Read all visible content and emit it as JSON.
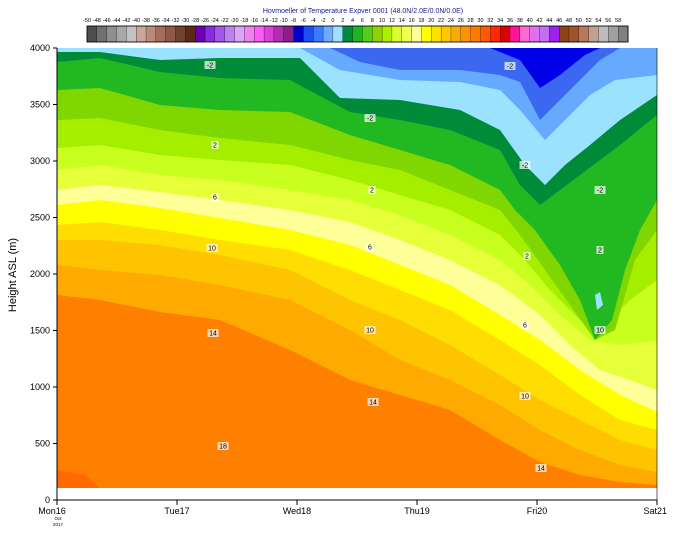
{
  "chart_data": {
    "type": "heatmap",
    "title": "Hovmoeller of Temperature Expver 0001 (48.0N/2.0E/0.0N/0.0E)",
    "ylabel": "Height ASL (m)",
    "xlabel": "",
    "ylim": [
      0,
      4000
    ],
    "yticks": [
      "0",
      "500",
      "1000",
      "1500",
      "2000",
      "2500",
      "3000",
      "3500",
      "4000"
    ],
    "xticks": [
      "Mon16",
      "Tue17",
      "Wed18",
      "Thu19",
      "Fri20",
      "Sat21"
    ],
    "x_sub": [
      "Oct",
      "2017"
    ],
    "colorbar": {
      "levels": [
        "-50",
        "-48",
        "-46",
        "-44",
        "-42",
        "-40",
        "-38",
        "-36",
        "-34",
        "-32",
        "-30",
        "-28",
        "-26",
        "-24",
        "-22",
        "-20",
        "-18",
        "-16",
        "-14",
        "-12",
        "-10",
        "-8",
        "-6",
        "-4",
        "-2",
        "0",
        "2",
        "4",
        "6",
        "8",
        "10",
        "12",
        "14",
        "16",
        "18",
        "20",
        "22",
        "24",
        "26",
        "28",
        "30",
        "32",
        "34",
        "36",
        "38",
        "40",
        "42",
        "44",
        "46",
        "48",
        "50",
        "52",
        "54",
        "56",
        "58"
      ],
      "colors": [
        "#4d4d4d",
        "#707070",
        "#8f8f8f",
        "#a8a8a8",
        "#c2c2c2",
        "#c9a89b",
        "#b88b7a",
        "#a56e5c",
        "#8c5a46",
        "#6e4330",
        "#5c2a14",
        "#6a00b0",
        "#8a2be2",
        "#a357ea",
        "#bf7ff2",
        "#d9a6f7",
        "#ee82ee",
        "#ff5cf4",
        "#dd3fdd",
        "#b02fb0",
        "#8a1f8a",
        "#0000cd",
        "#1c4ff0",
        "#3a7bff",
        "#6cabff",
        "#a0e0ff",
        "#008b3a",
        "#1fb51f",
        "#52d017",
        "#8fd400",
        "#b0ee00",
        "#d8ff2c",
        "#f2ff50",
        "#ffff99",
        "#ffff00",
        "#ffe100",
        "#ffc800",
        "#ffaa00",
        "#ff9200",
        "#ff7a00",
        "#ff5a00",
        "#ff2a00",
        "#e00000",
        "#ff1493",
        "#ff69d6",
        "#e06ef0",
        "#c070f0",
        "#a020f0",
        "#8b4513",
        "#a0522d",
        "#b8785a",
        "#c0a090",
        "#bcbcbc",
        "#a0a0a0",
        "#808080"
      ]
    },
    "contour_labels": [
      "-2",
      "-2",
      "-2",
      "-2",
      "-2",
      "2",
      "2",
      "2",
      "2",
      "6",
      "6",
      "6",
      "10",
      "10",
      "10",
      "10",
      "14",
      "14",
      "14",
      "18"
    ],
    "bands": [
      {
        "level": "18",
        "color": "#ff7f00"
      },
      {
        "level": "14",
        "color": "#ffaa00"
      },
      {
        "level": "12",
        "color": "#ffc400"
      },
      {
        "level": "10",
        "color": "#ffdd00"
      },
      {
        "level": "8",
        "color": "#ffff00"
      },
      {
        "level": "6",
        "color": "#ffff99"
      },
      {
        "level": "4",
        "color": "#e5ff38"
      },
      {
        "level": "2",
        "color": "#c8ff1e"
      },
      {
        "level": "0",
        "color": "#a5ee00"
      },
      {
        "level": "-2",
        "color": "#7fd600"
      },
      {
        "level": "-4",
        "color": "#22b822"
      },
      {
        "level": "-6",
        "color": "#008b38"
      },
      {
        "level": "-8",
        "color": "#9be2ff"
      },
      {
        "level": "-10",
        "color": "#66aaff"
      },
      {
        "level": "-12",
        "color": "#3a68f0"
      },
      {
        "level": "-14",
        "color": "#0000e6"
      }
    ]
  }
}
